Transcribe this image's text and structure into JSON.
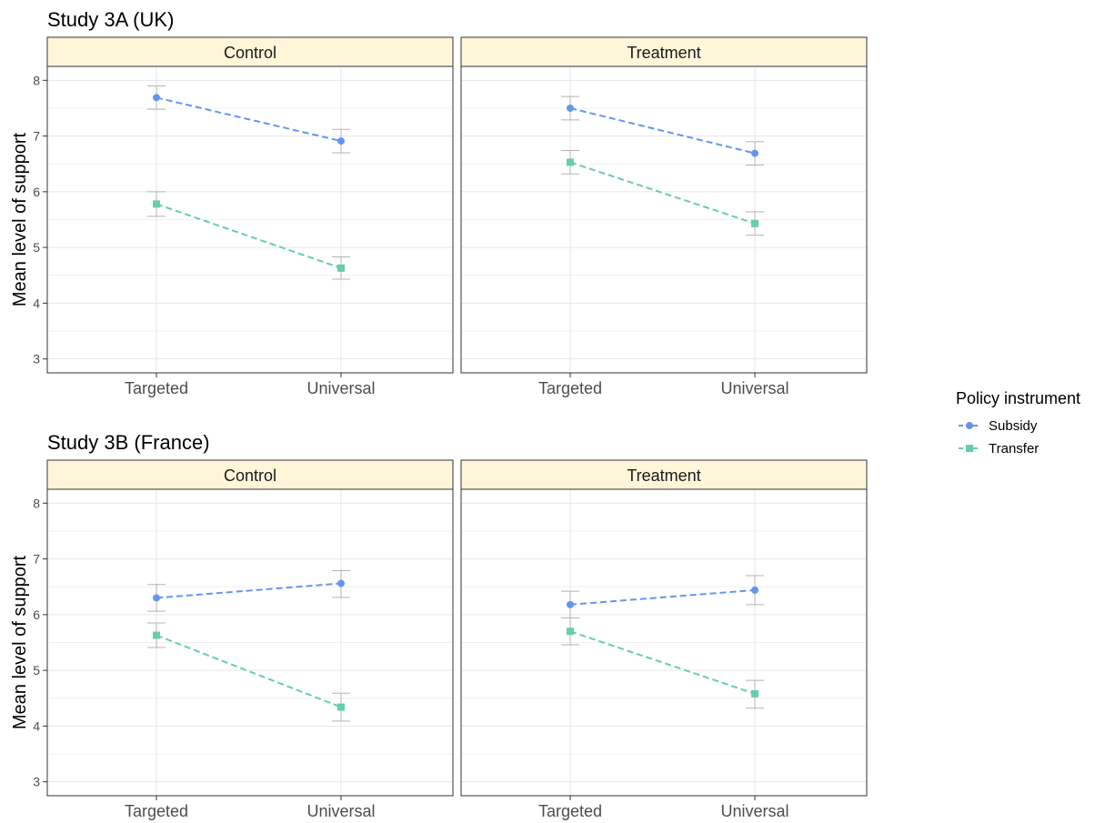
{
  "chart_data": {
    "type": "line",
    "ylabel": "Mean level of support",
    "ylim": [
      2.75,
      8.25
    ],
    "yticks": [
      3,
      4,
      5,
      6,
      7,
      8
    ],
    "categories": [
      "Targeted",
      "Universal"
    ],
    "grid": true,
    "legend": {
      "title": "Policy instrument",
      "position": "right",
      "items": [
        {
          "name": "Subsidy",
          "color": "#6495ED",
          "marker": "circle"
        },
        {
          "name": "Transfer",
          "color": "#66CDAA",
          "marker": "square"
        }
      ]
    },
    "studies": [
      {
        "title": "Study 3A (UK)",
        "panels": [
          {
            "label": "Control",
            "series": [
              {
                "name": "Subsidy",
                "values": [
                  7.69,
                  6.91
                ],
                "lower": [
                  7.48,
                  6.7
                ],
                "upper": [
                  7.9,
                  7.12
                ]
              },
              {
                "name": "Transfer",
                "values": [
                  5.78,
                  4.63
                ],
                "lower": [
                  5.56,
                  4.43
                ],
                "upper": [
                  6.0,
                  4.83
                ]
              }
            ]
          },
          {
            "label": "Treatment",
            "series": [
              {
                "name": "Subsidy",
                "values": [
                  7.5,
                  6.69
                ],
                "lower": [
                  7.29,
                  6.48
                ],
                "upper": [
                  7.71,
                  6.9
                ]
              },
              {
                "name": "Transfer",
                "values": [
                  6.53,
                  5.43
                ],
                "lower": [
                  6.32,
                  5.22
                ],
                "upper": [
                  6.74,
                  5.64
                ]
              }
            ]
          }
        ]
      },
      {
        "title": "Study 3B (France)",
        "panels": [
          {
            "label": "Control",
            "series": [
              {
                "name": "Subsidy",
                "values": [
                  6.3,
                  6.56
                ],
                "lower": [
                  6.06,
                  6.31
                ],
                "upper": [
                  6.54,
                  6.79
                ]
              },
              {
                "name": "Transfer",
                "values": [
                  5.63,
                  4.34
                ],
                "lower": [
                  5.41,
                  4.09
                ],
                "upper": [
                  5.85,
                  4.59
                ]
              }
            ]
          },
          {
            "label": "Treatment",
            "series": [
              {
                "name": "Subsidy",
                "values": [
                  6.18,
                  6.44
                ],
                "lower": [
                  5.94,
                  6.18
                ],
                "upper": [
                  6.42,
                  6.7
                ]
              },
              {
                "name": "Transfer",
                "values": [
                  5.7,
                  4.58
                ],
                "lower": [
                  5.46,
                  4.32
                ],
                "upper": [
                  5.94,
                  4.82
                ]
              }
            ]
          }
        ]
      }
    ]
  }
}
